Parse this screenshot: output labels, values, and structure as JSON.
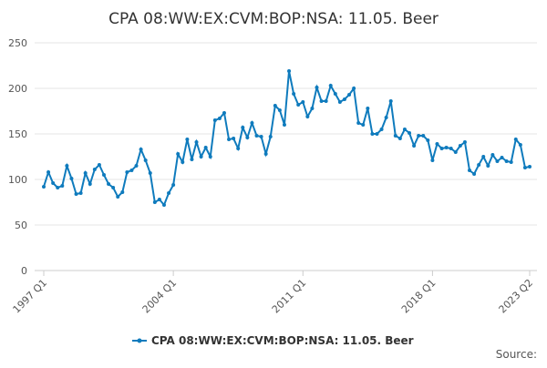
{
  "chart_data": {
    "type": "line",
    "title": "CPA 08:WW:EX:CVM:BOP:NSA: 11.05. Beer",
    "source": "Source:",
    "categories": [
      "1997 Q1",
      null,
      null,
      null,
      null,
      null,
      null,
      null,
      null,
      null,
      null,
      null,
      null,
      null,
      null,
      null,
      null,
      null,
      null,
      null,
      null,
      null,
      null,
      null,
      null,
      null,
      null,
      null,
      "2004 Q1",
      null,
      null,
      null,
      null,
      null,
      null,
      null,
      null,
      null,
      null,
      null,
      null,
      null,
      null,
      null,
      null,
      null,
      null,
      null,
      null,
      null,
      null,
      null,
      null,
      null,
      null,
      null,
      "2011 Q1",
      null,
      null,
      null,
      null,
      null,
      null,
      null,
      null,
      null,
      null,
      null,
      null,
      null,
      null,
      null,
      null,
      null,
      null,
      null,
      null,
      null,
      null,
      null,
      null,
      null,
      null,
      null,
      "2018 Q1",
      null,
      null,
      null,
      null,
      null,
      null,
      null,
      null,
      null,
      null,
      null,
      null,
      null,
      null,
      null,
      null,
      null,
      null,
      null,
      null,
      "2023 Q2"
    ],
    "series": [
      {
        "name": "CPA 08:WW:EX:CVM:BOP:NSA: 11.05. Beer",
        "color": "#0f7bbd",
        "values": [
          92,
          108,
          96,
          91,
          93,
          115,
          101,
          84,
          85,
          107,
          95,
          111,
          116,
          105,
          95,
          91,
          81,
          86,
          108,
          110,
          115,
          133,
          121,
          107,
          75,
          78,
          72,
          85,
          94,
          128,
          119,
          144,
          122,
          141,
          125,
          135,
          125,
          165,
          167,
          173,
          144,
          145,
          134,
          157,
          146,
          162,
          148,
          147,
          128,
          147,
          181,
          176,
          160,
          219,
          194,
          182,
          185,
          169,
          178,
          201,
          186,
          186,
          203,
          194,
          185,
          188,
          193,
          200,
          162,
          160,
          178,
          150,
          150,
          155,
          168,
          186,
          148,
          145,
          155,
          151,
          137,
          148,
          148,
          143,
          121,
          139,
          134,
          135,
          134,
          130,
          137,
          141,
          110,
          106,
          116,
          125,
          115,
          127,
          120,
          124,
          120,
          119,
          144,
          138,
          113,
          114
        ]
      }
    ],
    "ylim": [
      0,
      250
    ],
    "yticks": [
      0,
      50,
      100,
      150,
      200,
      250
    ],
    "grid": true
  }
}
